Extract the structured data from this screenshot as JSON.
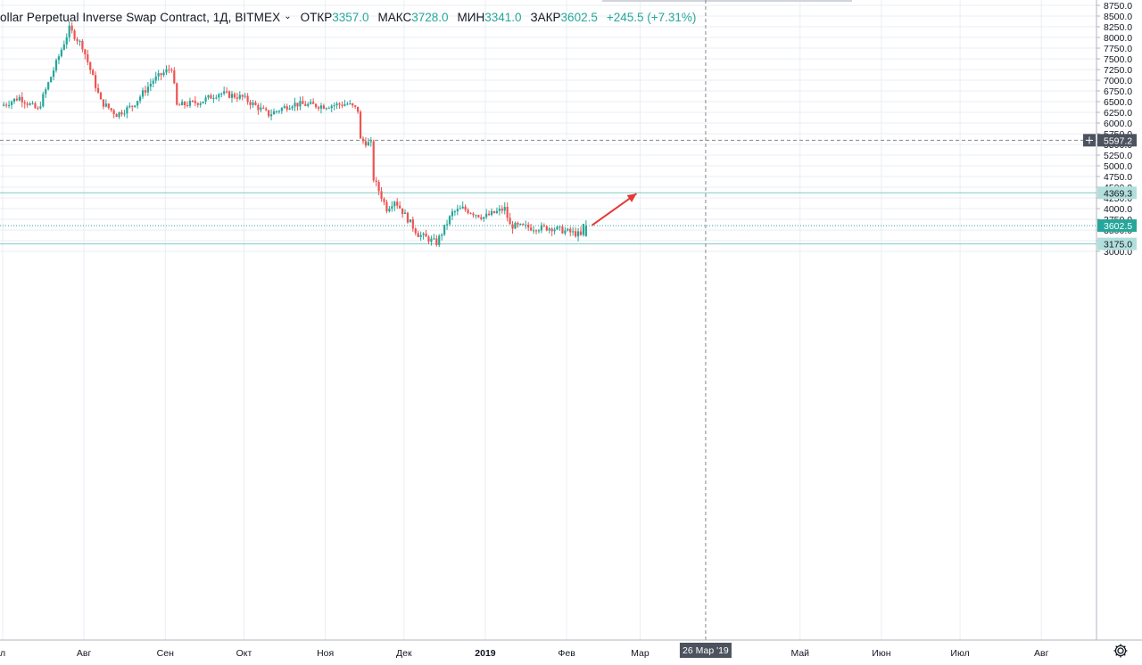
{
  "legend": {
    "symbol": "ollar Perpetual Inverse Swap Contract, 1Д, BITMEX",
    "open_label": "ОТКР",
    "open": "3357.0",
    "high_label": "МАКС",
    "high": "3728.0",
    "low_label": "МИН",
    "low": "3341.0",
    "close_label": "ЗАКР",
    "close": "3602.5",
    "change": "+245.5 (+7.31%)"
  },
  "colors": {
    "up": "#26a69a",
    "down": "#ef5350",
    "grid": "#e9eef5",
    "hline": "#80cbc4",
    "arrow": "#e53935",
    "crosshair": "#888888"
  },
  "chart_data": {
    "type": "candlestick",
    "y_ticks": [
      "8750.0",
      "8500.0",
      "8250.0",
      "8000.0",
      "7750.0",
      "7500.0",
      "7250.0",
      "7000.0",
      "6750.0",
      "6500.0",
      "6250.0",
      "6000.0",
      "5750.0",
      "5500.0",
      "5250.0",
      "5000.0",
      "4750.0",
      "4500.0",
      "4250.0",
      "4000.0",
      "3750.0",
      "3500.0",
      "3250.0",
      "3000.0"
    ],
    "x_labels": [
      "л",
      "Авг",
      "Сен",
      "Окт",
      "Ноя",
      "Дек",
      "2019",
      "Фев",
      "Мар",
      "Май",
      "Июн",
      "Июл",
      "Авг"
    ],
    "crosshair": {
      "price": "5597.2",
      "date": "26 Мар '19"
    },
    "horizontal_levels": [
      {
        "price": "4369.3",
        "style": "solid",
        "color": "#80cbc4"
      },
      {
        "price": "3175.0",
        "style": "solid",
        "color": "#80cbc4"
      }
    ],
    "last_price": "3602.5",
    "arrow": {
      "from": [
        "2019-02-10",
        3610
      ],
      "to": [
        "2019-03-01",
        4350
      ]
    },
    "close_path": [
      [
        "2018-07-01",
        6400
      ],
      [
        "2018-07-08",
        6600
      ],
      [
        "2018-07-15",
        6300
      ],
      [
        "2018-07-22",
        7400
      ],
      [
        "2018-07-27",
        8200
      ],
      [
        "2018-08-01",
        7800
      ],
      [
        "2018-08-08",
        6500
      ],
      [
        "2018-08-14",
        6200
      ],
      [
        "2018-08-20",
        6400
      ],
      [
        "2018-08-28",
        7000
      ],
      [
        "2018-09-04",
        7300
      ],
      [
        "2018-09-06",
        6400
      ],
      [
        "2018-09-15",
        6500
      ],
      [
        "2018-09-22",
        6700
      ],
      [
        "2018-10-01",
        6600
      ],
      [
        "2018-10-11",
        6200
      ],
      [
        "2018-10-20",
        6450
      ],
      [
        "2018-11-01",
        6400
      ],
      [
        "2018-11-10",
        6450
      ],
      [
        "2018-11-14",
        6300
      ],
      [
        "2018-11-15",
        5600
      ],
      [
        "2018-11-19",
        5500
      ],
      [
        "2018-11-20",
        4700
      ],
      [
        "2018-11-25",
        4000
      ],
      [
        "2018-11-28",
        4200
      ],
      [
        "2018-12-07",
        3400
      ],
      [
        "2018-12-14",
        3200
      ],
      [
        "2018-12-20",
        3900
      ],
      [
        "2018-12-24",
        4000
      ],
      [
        "2019-01-01",
        3800
      ],
      [
        "2019-01-09",
        4000
      ],
      [
        "2019-01-11",
        3600
      ],
      [
        "2019-01-20",
        3550
      ],
      [
        "2019-01-27",
        3550
      ],
      [
        "2019-02-06",
        3400
      ],
      [
        "2019-02-07",
        3357
      ],
      [
        "2019-02-08",
        3602.5
      ]
    ],
    "last_candle": {
      "date": "2019-02-08",
      "open": 3357.0,
      "high": 3728.0,
      "low": 3341.0,
      "close": 3602.5
    }
  }
}
